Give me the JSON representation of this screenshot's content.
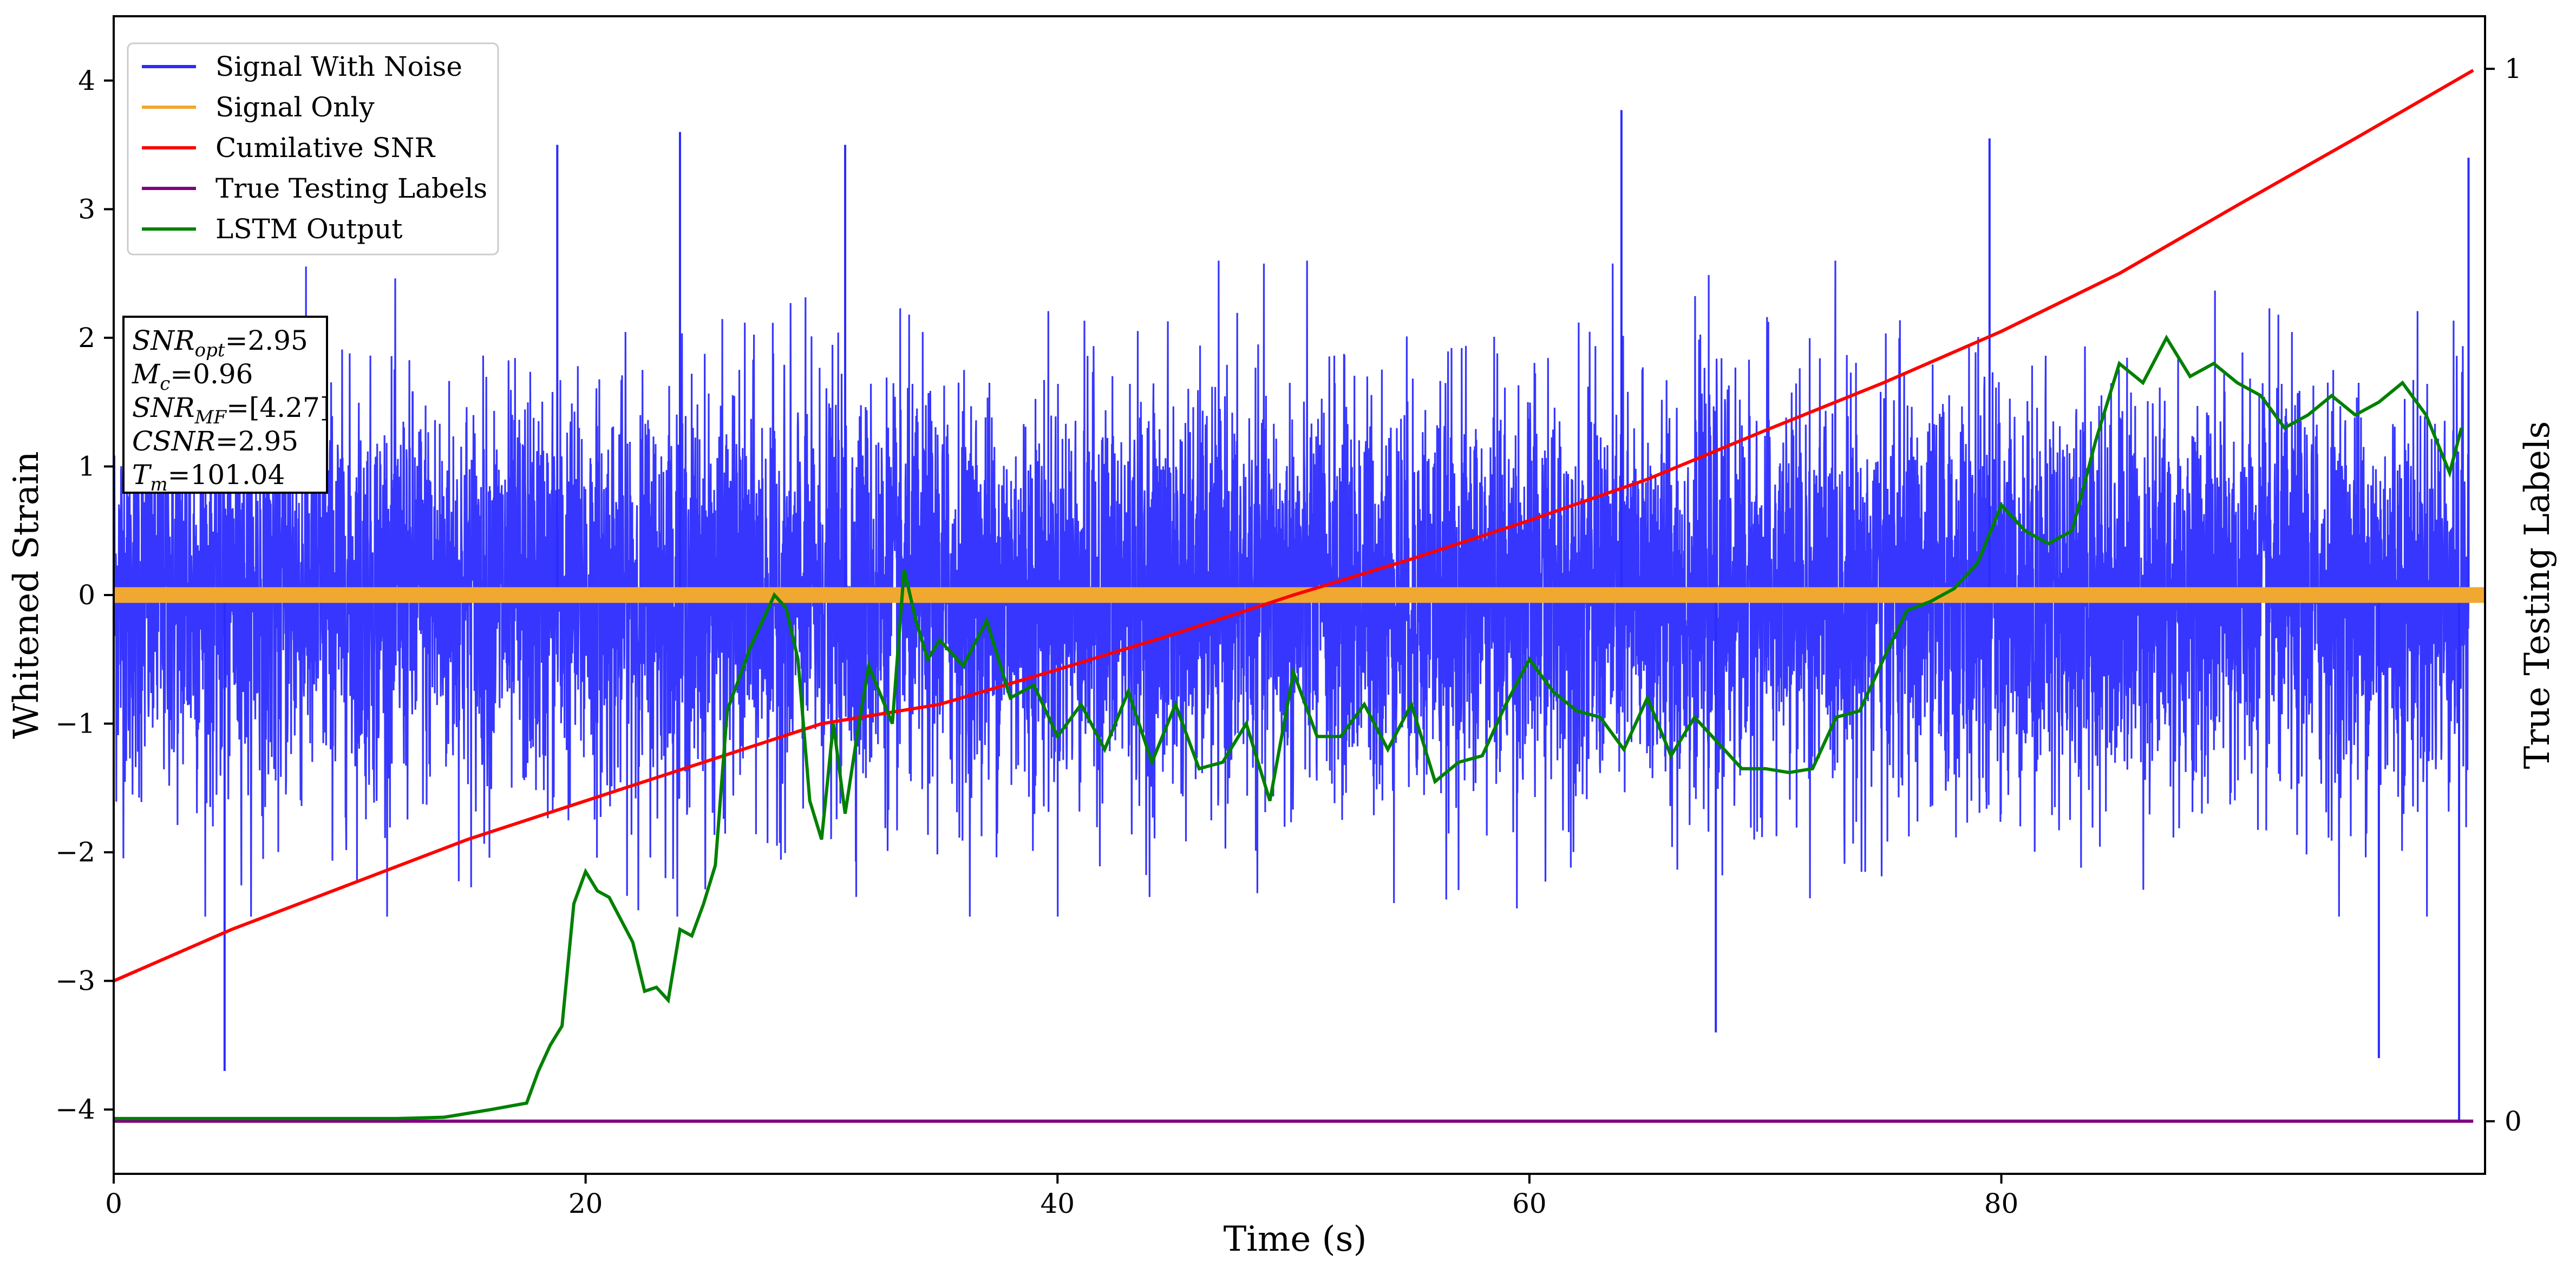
{
  "chart_data": {
    "type": "line",
    "xlabel": "Time (s)",
    "ylabel": "Whitened Strain",
    "y2label": "True Testing Labels",
    "xlim": [
      0,
      100.5
    ],
    "ylim": [
      -4.5,
      4.5
    ],
    "y2lim": [
      -0.05,
      1.05
    ],
    "x_ticks": [
      0,
      20,
      40,
      60,
      80
    ],
    "y_ticks": [
      -4,
      -3,
      -2,
      -1,
      0,
      1,
      2,
      3,
      4
    ],
    "y2_ticks": [
      0,
      1
    ],
    "grid": false,
    "legend_position": "top-left",
    "series": [
      {
        "name": "Signal With Noise",
        "color": "#2b2bff",
        "axis": "left",
        "description_values": "dense whitened noise, mostly within [-2.3, 2.5], peaks to about 3.77 near x=63.9 and dips to about -4.1 near x=99.4",
        "notable_points": [
          [
            4.7,
            -3.7
          ],
          [
            18.8,
            3.5
          ],
          [
            24.0,
            3.6
          ],
          [
            31.0,
            3.5
          ],
          [
            63.9,
            3.77
          ],
          [
            67.9,
            -3.4
          ],
          [
            79.5,
            3.55
          ],
          [
            96.0,
            -3.6
          ],
          [
            99.4,
            -4.1
          ],
          [
            99.8,
            3.4
          ]
        ]
      },
      {
        "name": "Signal Only",
        "color": "#f0a830",
        "axis": "left",
        "amplitude": 0.06
      },
      {
        "name": "Cumilative SNR",
        "color": "#ff0000",
        "axis": "left",
        "x": [
          0,
          5,
          10,
          15,
          20,
          25,
          30,
          35,
          40,
          45,
          50,
          55,
          60,
          65,
          70,
          75,
          80,
          85,
          90,
          95,
          100
        ],
        "y": [
          -3.0,
          -2.6,
          -2.25,
          -1.9,
          -1.6,
          -1.3,
          -1.0,
          -0.85,
          -0.58,
          -0.3,
          0.0,
          0.28,
          0.58,
          0.9,
          1.28,
          1.65,
          2.05,
          2.5,
          3.03,
          3.55,
          4.08
        ]
      },
      {
        "name": "True Testing Labels",
        "color": "#800080",
        "axis": "right",
        "x": [
          0,
          100
        ],
        "y": [
          0,
          0
        ]
      },
      {
        "name": "LSTM Output",
        "color": "#008000",
        "axis": "left",
        "x": [
          0,
          12,
          14,
          16,
          17.5,
          18,
          18.5,
          19,
          19.5,
          20,
          20.5,
          21,
          22,
          22.5,
          23,
          23.5,
          24,
          24.5,
          25,
          25.5,
          26,
          27,
          28,
          28.5,
          29,
          29.5,
          30,
          30.5,
          31,
          31.5,
          32,
          33,
          33.5,
          34,
          34.5,
          35,
          36,
          37,
          38,
          39,
          40,
          41,
          42,
          43,
          44,
          45,
          46,
          47,
          48,
          49,
          50,
          51,
          52,
          53,
          54,
          55,
          56,
          57,
          58,
          59,
          60,
          61,
          62,
          63,
          64,
          65,
          66,
          67,
          68,
          69,
          70,
          71,
          72,
          73,
          74,
          75,
          76,
          77,
          78,
          79,
          80,
          81,
          82,
          83,
          84,
          85,
          86,
          87,
          88,
          89,
          90,
          91,
          92,
          93,
          94,
          95,
          96,
          97,
          98,
          99,
          99.5
        ],
        "y": [
          -4.07,
          -4.07,
          -4.06,
          -4.0,
          -3.95,
          -3.7,
          -3.5,
          -3.35,
          -2.4,
          -2.15,
          -2.3,
          -2.35,
          -2.7,
          -3.08,
          -3.05,
          -3.15,
          -2.6,
          -2.65,
          -2.4,
          -2.1,
          -0.9,
          -0.4,
          0.0,
          -0.1,
          -0.5,
          -1.6,
          -1.9,
          -1.0,
          -1.7,
          -1.1,
          -0.55,
          -1.0,
          0.2,
          -0.2,
          -0.5,
          -0.35,
          -0.55,
          -0.2,
          -0.8,
          -0.7,
          -1.1,
          -0.85,
          -1.2,
          -0.75,
          -1.3,
          -0.85,
          -1.35,
          -1.3,
          -1.0,
          -1.6,
          -0.6,
          -1.1,
          -1.1,
          -0.85,
          -1.2,
          -0.85,
          -1.45,
          -1.3,
          -1.25,
          -0.85,
          -0.5,
          -0.75,
          -0.9,
          -0.95,
          -1.2,
          -0.8,
          -1.25,
          -0.95,
          -1.15,
          -1.35,
          -1.35,
          -1.38,
          -1.35,
          -0.95,
          -0.9,
          -0.5,
          -0.12,
          -0.05,
          0.05,
          0.25,
          0.7,
          0.5,
          0.4,
          0.5,
          1.2,
          1.8,
          1.65,
          2.0,
          1.7,
          1.8,
          1.65,
          1.55,
          1.3,
          1.4,
          1.55,
          1.4,
          1.5,
          1.65,
          1.4,
          0.95,
          1.3
        ]
      }
    ],
    "annotation": {
      "lines": [
        {
          "base": "SNR",
          "sub": "opt",
          "value": "=2.95"
        },
        {
          "base": "M",
          "sub": "c",
          "value": "=0.96"
        },
        {
          "base": "SNR",
          "sub": "MF",
          "value": "=[4.27]"
        },
        {
          "base": "CSNR",
          "sub": "",
          "value": "=2.95"
        },
        {
          "base": "T",
          "sub": "m",
          "value": "=101.04"
        }
      ]
    }
  }
}
